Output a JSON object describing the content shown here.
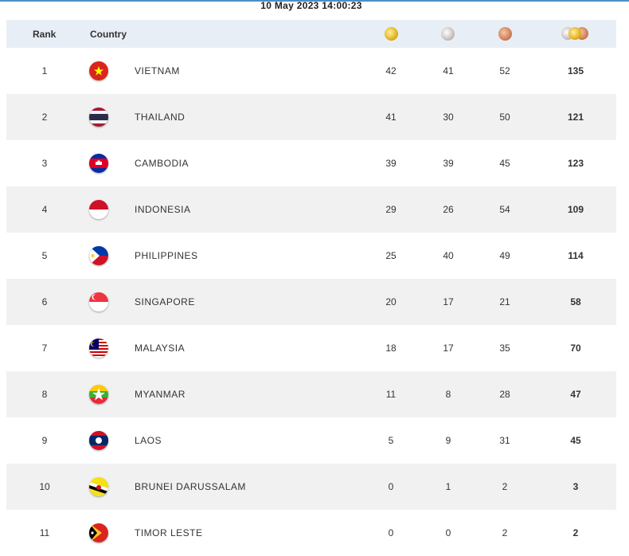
{
  "timestamp": "10 May 2023  14:00:23",
  "header": {
    "rank": "Rank",
    "country": "Country",
    "gold_icon": "gold-medal-icon",
    "silver_icon": "silver-medal-icon",
    "bronze_icon": "bronze-medal-icon",
    "total_icon": "total-medals-icon"
  },
  "colors": {
    "header_bg": "#e8eef5",
    "alt_row_bg": "#f1f1f1",
    "top_line": "#4a90c8"
  },
  "rows": [
    {
      "rank": "1",
      "country": "VIETNAM",
      "flag": "vietnam-flag-icon",
      "gold": "42",
      "silver": "41",
      "bronze": "52",
      "total": "135"
    },
    {
      "rank": "2",
      "country": "THAILAND",
      "flag": "thailand-flag-icon",
      "gold": "41",
      "silver": "30",
      "bronze": "50",
      "total": "121"
    },
    {
      "rank": "3",
      "country": "CAMBODIA",
      "flag": "cambodia-flag-icon",
      "gold": "39",
      "silver": "39",
      "bronze": "45",
      "total": "123"
    },
    {
      "rank": "4",
      "country": "INDONESIA",
      "flag": "indonesia-flag-icon",
      "gold": "29",
      "silver": "26",
      "bronze": "54",
      "total": "109"
    },
    {
      "rank": "5",
      "country": "PHILIPPINES",
      "flag": "philippines-flag-icon",
      "gold": "25",
      "silver": "40",
      "bronze": "49",
      "total": "114"
    },
    {
      "rank": "6",
      "country": "SINGAPORE",
      "flag": "singapore-flag-icon",
      "gold": "20",
      "silver": "17",
      "bronze": "21",
      "total": "58"
    },
    {
      "rank": "7",
      "country": "MALAYSIA",
      "flag": "malaysia-flag-icon",
      "gold": "18",
      "silver": "17",
      "bronze": "35",
      "total": "70"
    },
    {
      "rank": "8",
      "country": "MYANMAR",
      "flag": "myanmar-flag-icon",
      "gold": "11",
      "silver": "8",
      "bronze": "28",
      "total": "47"
    },
    {
      "rank": "9",
      "country": "LAOS",
      "flag": "laos-flag-icon",
      "gold": "5",
      "silver": "9",
      "bronze": "31",
      "total": "45"
    },
    {
      "rank": "10",
      "country": "BRUNEI DARUSSALAM",
      "flag": "brunei-flag-icon",
      "gold": "0",
      "silver": "1",
      "bronze": "2",
      "total": "3"
    },
    {
      "rank": "11",
      "country": "TIMOR LESTE",
      "flag": "timor-leste-flag-icon",
      "gold": "0",
      "silver": "0",
      "bronze": "2",
      "total": "2"
    }
  ]
}
